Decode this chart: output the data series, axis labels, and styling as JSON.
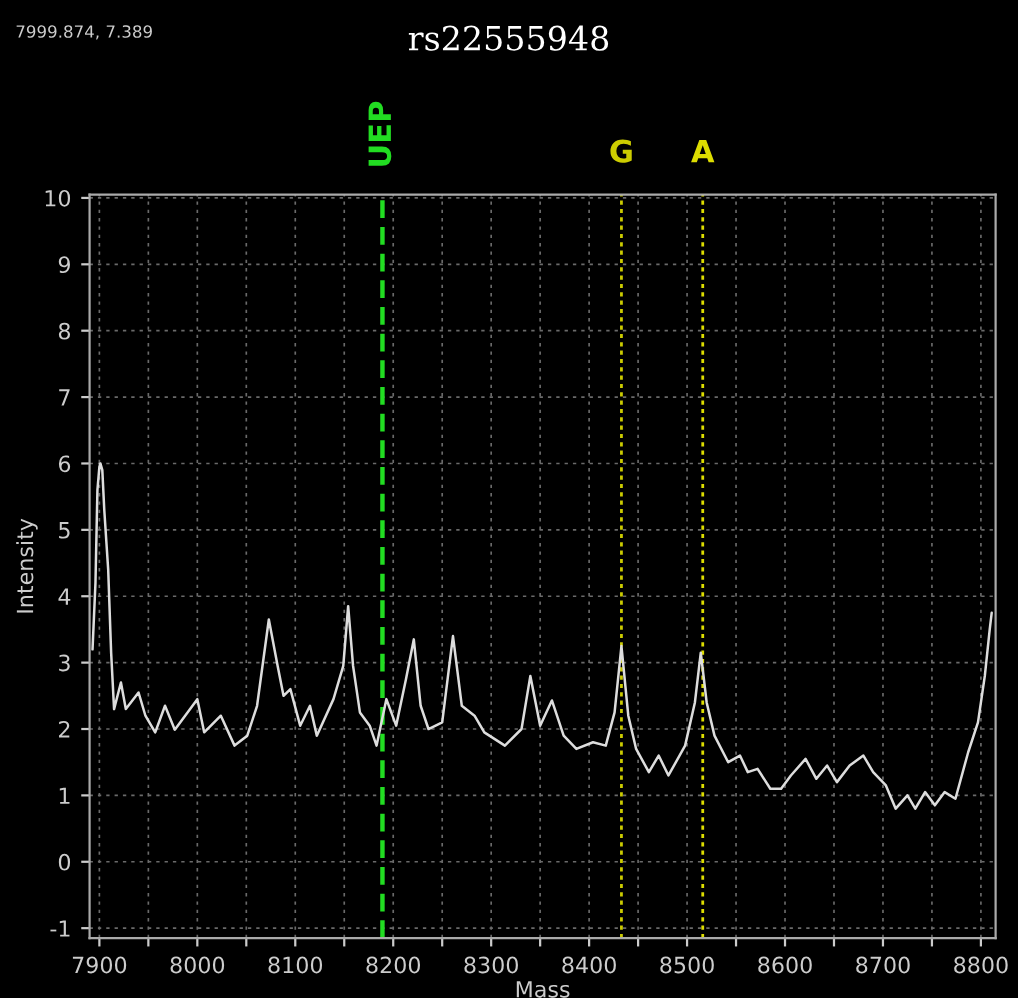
{
  "chart_data": {
    "type": "line",
    "title": "rs22555948",
    "xlabel": "Mass",
    "ylabel": "Intensity",
    "annotations": [
      "7999.874, 7.389"
    ],
    "x": [
      7893,
      7896,
      7898,
      7900,
      7901,
      7903,
      7905,
      7909,
      7912,
      7915,
      7922,
      7927,
      7940,
      7947,
      7957,
      7967,
      7977,
      8000,
      8007,
      8024,
      8038,
      8051,
      8061,
      8073,
      8082,
      8088,
      8095,
      8105,
      8115,
      8122,
      8139,
      8149,
      8154,
      8159,
      8166,
      8176,
      8183,
      8193,
      8203,
      8213,
      8221,
      8228,
      8236,
      8250,
      8261,
      8270,
      8283,
      8293,
      8314,
      8331,
      8340,
      8350,
      8362,
      8374,
      8387,
      8404,
      8417,
      8426,
      8433,
      8440,
      8448,
      8461,
      8471,
      8481,
      8498,
      8508,
      8514,
      8520,
      8528,
      8542,
      8554,
      8562,
      8572,
      8585,
      8596,
      8606,
      8621,
      8632,
      8643,
      8653,
      8666,
      8680,
      8690,
      8703,
      8713,
      8725,
      8733,
      8743,
      8753,
      8763,
      8774,
      8787,
      8797,
      8804,
      8809,
      8811
    ],
    "series": [
      {
        "color": "#dddddd",
        "values": [
          3.2,
          4.2,
          5.6,
          5.95,
          6.0,
          5.9,
          5.3,
          4.4,
          3.15,
          2.3,
          2.7,
          2.3,
          2.55,
          2.2,
          1.95,
          2.35,
          1.99,
          2.45,
          1.95,
          2.2,
          1.75,
          1.9,
          2.35,
          3.65,
          2.95,
          2.5,
          2.6,
          2.05,
          2.35,
          1.9,
          2.45,
          2.95,
          3.85,
          2.95,
          2.25,
          2.05,
          1.75,
          2.45,
          2.05,
          2.75,
          3.35,
          2.35,
          2.0,
          2.1,
          3.4,
          2.35,
          2.2,
          1.95,
          1.75,
          2.0,
          2.8,
          2.05,
          2.43,
          1.9,
          1.7,
          1.8,
          1.75,
          2.25,
          3.25,
          2.2,
          1.7,
          1.35,
          1.6,
          1.3,
          1.75,
          2.4,
          3.15,
          2.4,
          1.9,
          1.5,
          1.6,
          1.35,
          1.4,
          1.1,
          1.1,
          1.3,
          1.55,
          1.25,
          1.45,
          1.2,
          1.45,
          1.6,
          1.35,
          1.15,
          0.8,
          1.0,
          0.8,
          1.05,
          0.85,
          1.05,
          0.95,
          1.65,
          2.1,
          2.8,
          3.5,
          3.75
        ]
      }
    ],
    "xlim": [
      7890,
      8815
    ],
    "ylim": [
      -1.15,
      10.05
    ],
    "xticks": [
      7900,
      {
        "value": 7950,
        "label": null
      },
      8000,
      {
        "value": 8050,
        "label": null
      },
      8100,
      {
        "value": 8150,
        "label": null
      },
      8200,
      {
        "value": 8250,
        "label": null
      },
      8300,
      {
        "value": 8350,
        "label": null
      },
      8400,
      {
        "value": 8450,
        "label": null
      },
      8500,
      {
        "value": 8550,
        "label": null
      },
      8600,
      {
        "value": 8650,
        "label": null
      },
      8700,
      {
        "value": 8750,
        "label": null
      },
      8800
    ],
    "yticks": [
      -1,
      0,
      1,
      2,
      3,
      4,
      5,
      6,
      7,
      8,
      9,
      10
    ],
    "grid": true,
    "line_style": "solid",
    "marker": "none",
    "ref_lines": [
      {
        "axis": "x",
        "value": 8189,
        "label": "UEP",
        "color": "#22dd22",
        "line_style": "dashed"
      },
      {
        "axis": "x",
        "value": 8433,
        "label": "G",
        "color": "#cccc00",
        "line_style": "dotted"
      },
      {
        "axis": "x",
        "value": 8516,
        "label": "A",
        "color": "#dddd00",
        "line_style": "dotted"
      }
    ]
  }
}
